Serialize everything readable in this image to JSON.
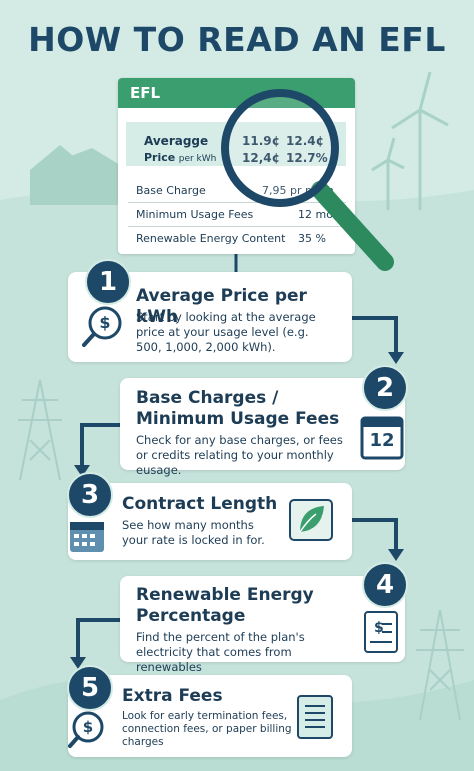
{
  "title": "HOW TO READ AN EFL",
  "efl": {
    "header": "EFL",
    "price_label": "Averagge",
    "price_label_2": "Price",
    "price_unit": "per kWh",
    "prices": [
      [
        "11.9¢",
        "12.4¢"
      ],
      [
        "12,4¢",
        "12.7%"
      ]
    ],
    "rows": [
      {
        "label": "Base Charge",
        "value": "7,95 pr moth"
      },
      {
        "label": "Minimum Usage Fees",
        "value": "12 mo"
      },
      {
        "label": "Renewable Energy Content",
        "value": "35 %"
      }
    ]
  },
  "steps": [
    {
      "number": "1",
      "heading": "Average Price per kWh",
      "text": "Start by looking at the average price at your usage level (e.g. 500, 1,000, 2,000 kWh)."
    },
    {
      "number": "2",
      "heading": "Base Charges / Minimum Usage Fees",
      "text": "Check for any base charges, or fees or credits relating to your monthly eusage."
    },
    {
      "number": "3",
      "heading": "Contract Length",
      "text": "See how many months your rate is locked in for."
    },
    {
      "number": "4",
      "heading": "Renewable Energy Percentage",
      "text": "Find the percent of the plan's electricity that comes from renewables"
    },
    {
      "number": "5",
      "heading": "Extra Fees",
      "text": "Look for early termination fees, connection fees, or paper billing charges"
    }
  ],
  "calendar_day": "12"
}
